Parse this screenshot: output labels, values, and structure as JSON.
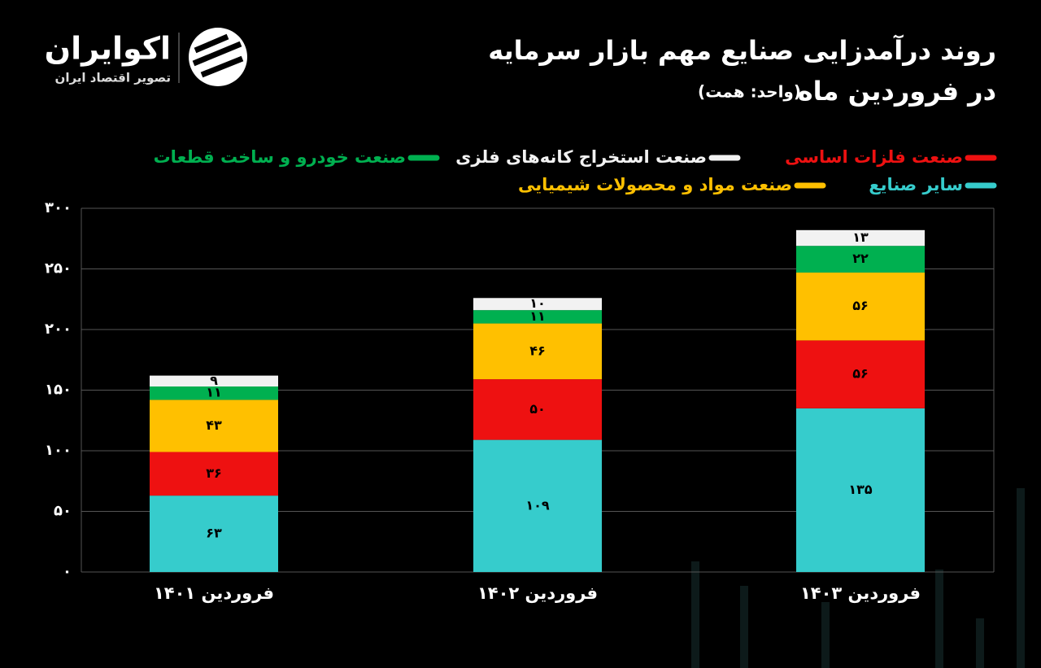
{
  "logo": {
    "name": "اکوایران",
    "tagline": "تصویر اقتصاد ایران"
  },
  "chart_data": {
    "type": "stacked-bar",
    "title": "روند درآمدزایی صنایع مهم بازار سرمایه",
    "title_line2": "در فروردین ماه",
    "subtitle": "(واحد: همت)",
    "categories": [
      "فروردین ۱۴۰۱",
      "فروردین ۱۴۰۲",
      "فروردین ۱۴۰۳"
    ],
    "series": [
      {
        "name": "سایر صنایع",
        "color": "#36cccc",
        "values": [
          63,
          109,
          135
        ],
        "value_labels": [
          "۶۳",
          "۱۰۹",
          "۱۳۵"
        ]
      },
      {
        "name": "صنعت فلزات اساسی",
        "color": "#ee1111",
        "values": [
          36,
          50,
          56
        ],
        "value_labels": [
          "۳۶",
          "۵۰",
          "۵۶"
        ]
      },
      {
        "name": "صنعت مواد و محصولات شیمیایی",
        "color": "#ffc000",
        "values": [
          43,
          46,
          56
        ],
        "value_labels": [
          "۴۳",
          "۴۶",
          "۵۶"
        ]
      },
      {
        "name": "صنعت خودرو و ساخت قطعات",
        "color": "#00b050",
        "values": [
          11,
          11,
          22
        ],
        "value_labels": [
          "۱۱",
          "۱۱",
          "۲۲"
        ]
      },
      {
        "name": "صنعت استخراج کانه‌های فلزی",
        "color": "#f2f2f2",
        "values": [
          9,
          10,
          13
        ],
        "value_labels": [
          "۹",
          "۱۰",
          "۱۳"
        ]
      }
    ],
    "ylim": [
      0,
      300
    ],
    "yticks": [
      {
        "value": 0,
        "label": "۰"
      },
      {
        "value": 50,
        "label": "۵۰"
      },
      {
        "value": 100,
        "label": "۱۰۰"
      },
      {
        "value": 150,
        "label": "۱۵۰"
      },
      {
        "value": 200,
        "label": "۲۰۰"
      },
      {
        "value": 250,
        "label": "۲۵۰"
      },
      {
        "value": 300,
        "label": "۳۰۰"
      }
    ],
    "grid": true
  }
}
